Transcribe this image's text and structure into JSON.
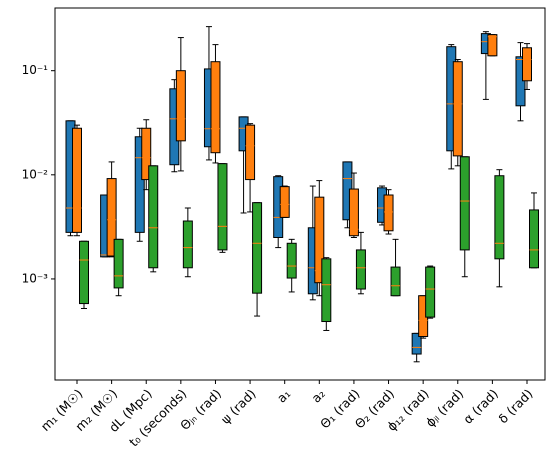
{
  "chart_data": {
    "type": "box",
    "log_scale": true,
    "median_color": "#ff7f0e",
    "categories": [
      "m₁ (M☉)",
      "m₂ (M☉)",
      "dL (Mpc)",
      "t₀ (seconds)",
      "Θⱼₙ (rad)",
      "ψ (rad)",
      "a₁",
      "a₂",
      "Θ₁ (rad)",
      "Θ₂ (rad)",
      "ϕ₁₂ (rad)",
      "ϕⱼₗ (rad)",
      "α (rad)",
      "δ (rad)"
    ],
    "ylim": [
      0.000107,
      0.4
    ],
    "yticks": [
      {
        "value": 0.001,
        "label": "10⁻³"
      },
      {
        "value": 0.01,
        "label": "10⁻²"
      },
      {
        "value": 0.1,
        "label": "10⁻¹"
      }
    ],
    "series": [
      {
        "color": "#1f77b4",
        "boxes": [
          {
            "low": 0.0026,
            "q1": 0.0028,
            "median": 0.0048,
            "q3": 0.033,
            "high": 0.033
          },
          {
            "low": 0.00163,
            "q1": 0.00163,
            "median": 0.0017,
            "q3": 0.0064,
            "high": 0.0064
          },
          {
            "low": 0.0023,
            "q1": 0.0028,
            "median": 0.0146,
            "q3": 0.0232,
            "high": 0.028
          },
          {
            "low": 0.0107,
            "q1": 0.0125,
            "median": 0.0345,
            "q3": 0.067,
            "high": 0.082
          },
          {
            "low": 0.0139,
            "q1": 0.0186,
            "median": 0.0277,
            "q3": 0.104,
            "high": 0.265
          },
          {
            "low": 0.0043,
            "q1": 0.017,
            "median": 0.028,
            "q3": 0.036,
            "high": 0.036
          },
          {
            "low": 0.002,
            "q1": 0.0025,
            "median": 0.0039,
            "q3": 0.0096,
            "high": 0.0098
          },
          {
            "low": 0.00063,
            "q1": 0.00072,
            "median": 0.00128,
            "q3": 0.0031,
            "high": 0.0078
          },
          {
            "low": 0.0031,
            "q1": 0.0037,
            "median": 0.0092,
            "q3": 0.0133,
            "high": 0.0133
          },
          {
            "low": 0.0033,
            "q1": 0.0035,
            "median": 0.0048,
            "q3": 0.0075,
            "high": 0.0078
          },
          {
            "low": 0.00016,
            "q1": 0.00019,
            "median": 0.00022,
            "q3": 0.0003,
            "high": 0.0003
          },
          {
            "low": 0.0114,
            "q1": 0.017,
            "median": 0.048,
            "q3": 0.17,
            "high": 0.178
          },
          {
            "low": 0.053,
            "q1": 0.146,
            "median": 0.19,
            "q3": 0.227,
            "high": 0.237
          },
          {
            "low": 0.033,
            "q1": 0.046,
            "median": 0.128,
            "q3": 0.136,
            "high": 0.186
          }
        ]
      },
      {
        "color": "#ff7f0e",
        "boxes": [
          {
            "low": 0.0026,
            "q1": 0.0028,
            "median": 0.0048,
            "q3": 0.028,
            "high": 0.03
          },
          {
            "low": 0.00163,
            "q1": 0.00166,
            "median": 0.0037,
            "q3": 0.0092,
            "high": 0.0133
          },
          {
            "low": 0.0072,
            "q1": 0.009,
            "median": 0.0146,
            "q3": 0.028,
            "high": 0.0338
          },
          {
            "low": 0.0109,
            "q1": 0.0212,
            "median": 0.0345,
            "q3": 0.1,
            "high": 0.208
          },
          {
            "low": 0.013,
            "q1": 0.0163,
            "median": 0.0277,
            "q3": 0.122,
            "high": 0.178
          },
          {
            "low": 0.0044,
            "q1": 0.009,
            "median": 0.019,
            "q3": 0.03,
            "high": 0.031
          },
          {
            "low": 0.0039,
            "q1": 0.0039,
            "median": 0.0052,
            "q3": 0.0077,
            "high": 0.0078
          },
          {
            "low": 0.00069,
            "q1": 0.00092,
            "median": 0.0012,
            "q3": 0.0061,
            "high": 0.0088
          },
          {
            "low": 0.0025,
            "q1": 0.0026,
            "median": 0.003,
            "q3": 0.0073,
            "high": 0.0104
          },
          {
            "low": 0.0027,
            "q1": 0.0029,
            "median": 0.0044,
            "q3": 0.0064,
            "high": 0.0072
          },
          {
            "low": 0.00027,
            "q1": 0.00028,
            "median": 0.0004,
            "q3": 0.00069,
            "high": 0.00069
          },
          {
            "low": 0.0122,
            "q1": 0.0152,
            "median": 0.048,
            "q3": 0.122,
            "high": 0.128
          },
          {
            "low": 0.139,
            "q1": 0.139,
            "median": 0.212,
            "q3": 0.222,
            "high": 0.222
          },
          {
            "low": 0.066,
            "q1": 0.08,
            "median": 0.128,
            "q3": 0.166,
            "high": 0.182
          }
        ]
      },
      {
        "color": "#2ca02c",
        "boxes": [
          {
            "low": 0.00052,
            "q1": 0.00058,
            "median": 0.00152,
            "q3": 0.0023,
            "high": 0.0023
          },
          {
            "low": 0.00069,
            "q1": 0.00082,
            "median": 0.00107,
            "q3": 0.0024,
            "high": 0.0024
          },
          {
            "low": 0.00117,
            "q1": 0.00128,
            "median": 0.0031,
            "q3": 0.0122,
            "high": 0.0122
          },
          {
            "low": 0.00105,
            "q1": 0.00128,
            "median": 0.002,
            "q3": 0.0036,
            "high": 0.0048
          },
          {
            "low": 0.0018,
            "q1": 0.0019,
            "median": 0.0032,
            "q3": 0.0128,
            "high": 0.0128
          },
          {
            "low": 0.00044,
            "q1": 0.00073,
            "median": 0.0022,
            "q3": 0.0054,
            "high": 0.0054
          },
          {
            "low": 0.00075,
            "q1": 0.00102,
            "median": 0.00133,
            "q3": 0.0022,
            "high": 0.0024
          },
          {
            "low": 0.00032,
            "q1": 0.00039,
            "median": 0.00088,
            "q3": 0.00156,
            "high": 0.0016
          },
          {
            "low": 0.00072,
            "q1": 0.0008,
            "median": 0.00128,
            "q3": 0.0019,
            "high": 0.0028
          },
          {
            "low": 0.00069,
            "q1": 0.00069,
            "median": 0.00086,
            "q3": 0.0013,
            "high": 0.0024
          },
          {
            "low": 0.00042,
            "q1": 0.00043,
            "median": 0.0008,
            "q3": 0.0013,
            "high": 0.00133
          },
          {
            "low": 0.00105,
            "q1": 0.0019,
            "median": 0.0056,
            "q3": 0.0149,
            "high": 0.0149
          },
          {
            "low": 0.00084,
            "q1": 0.00156,
            "median": 0.0022,
            "q3": 0.0098,
            "high": 0.0112
          },
          {
            "low": 0.00128,
            "q1": 0.00128,
            "median": 0.0019,
            "q3": 0.0046,
            "high": 0.0067
          }
        ]
      }
    ]
  }
}
